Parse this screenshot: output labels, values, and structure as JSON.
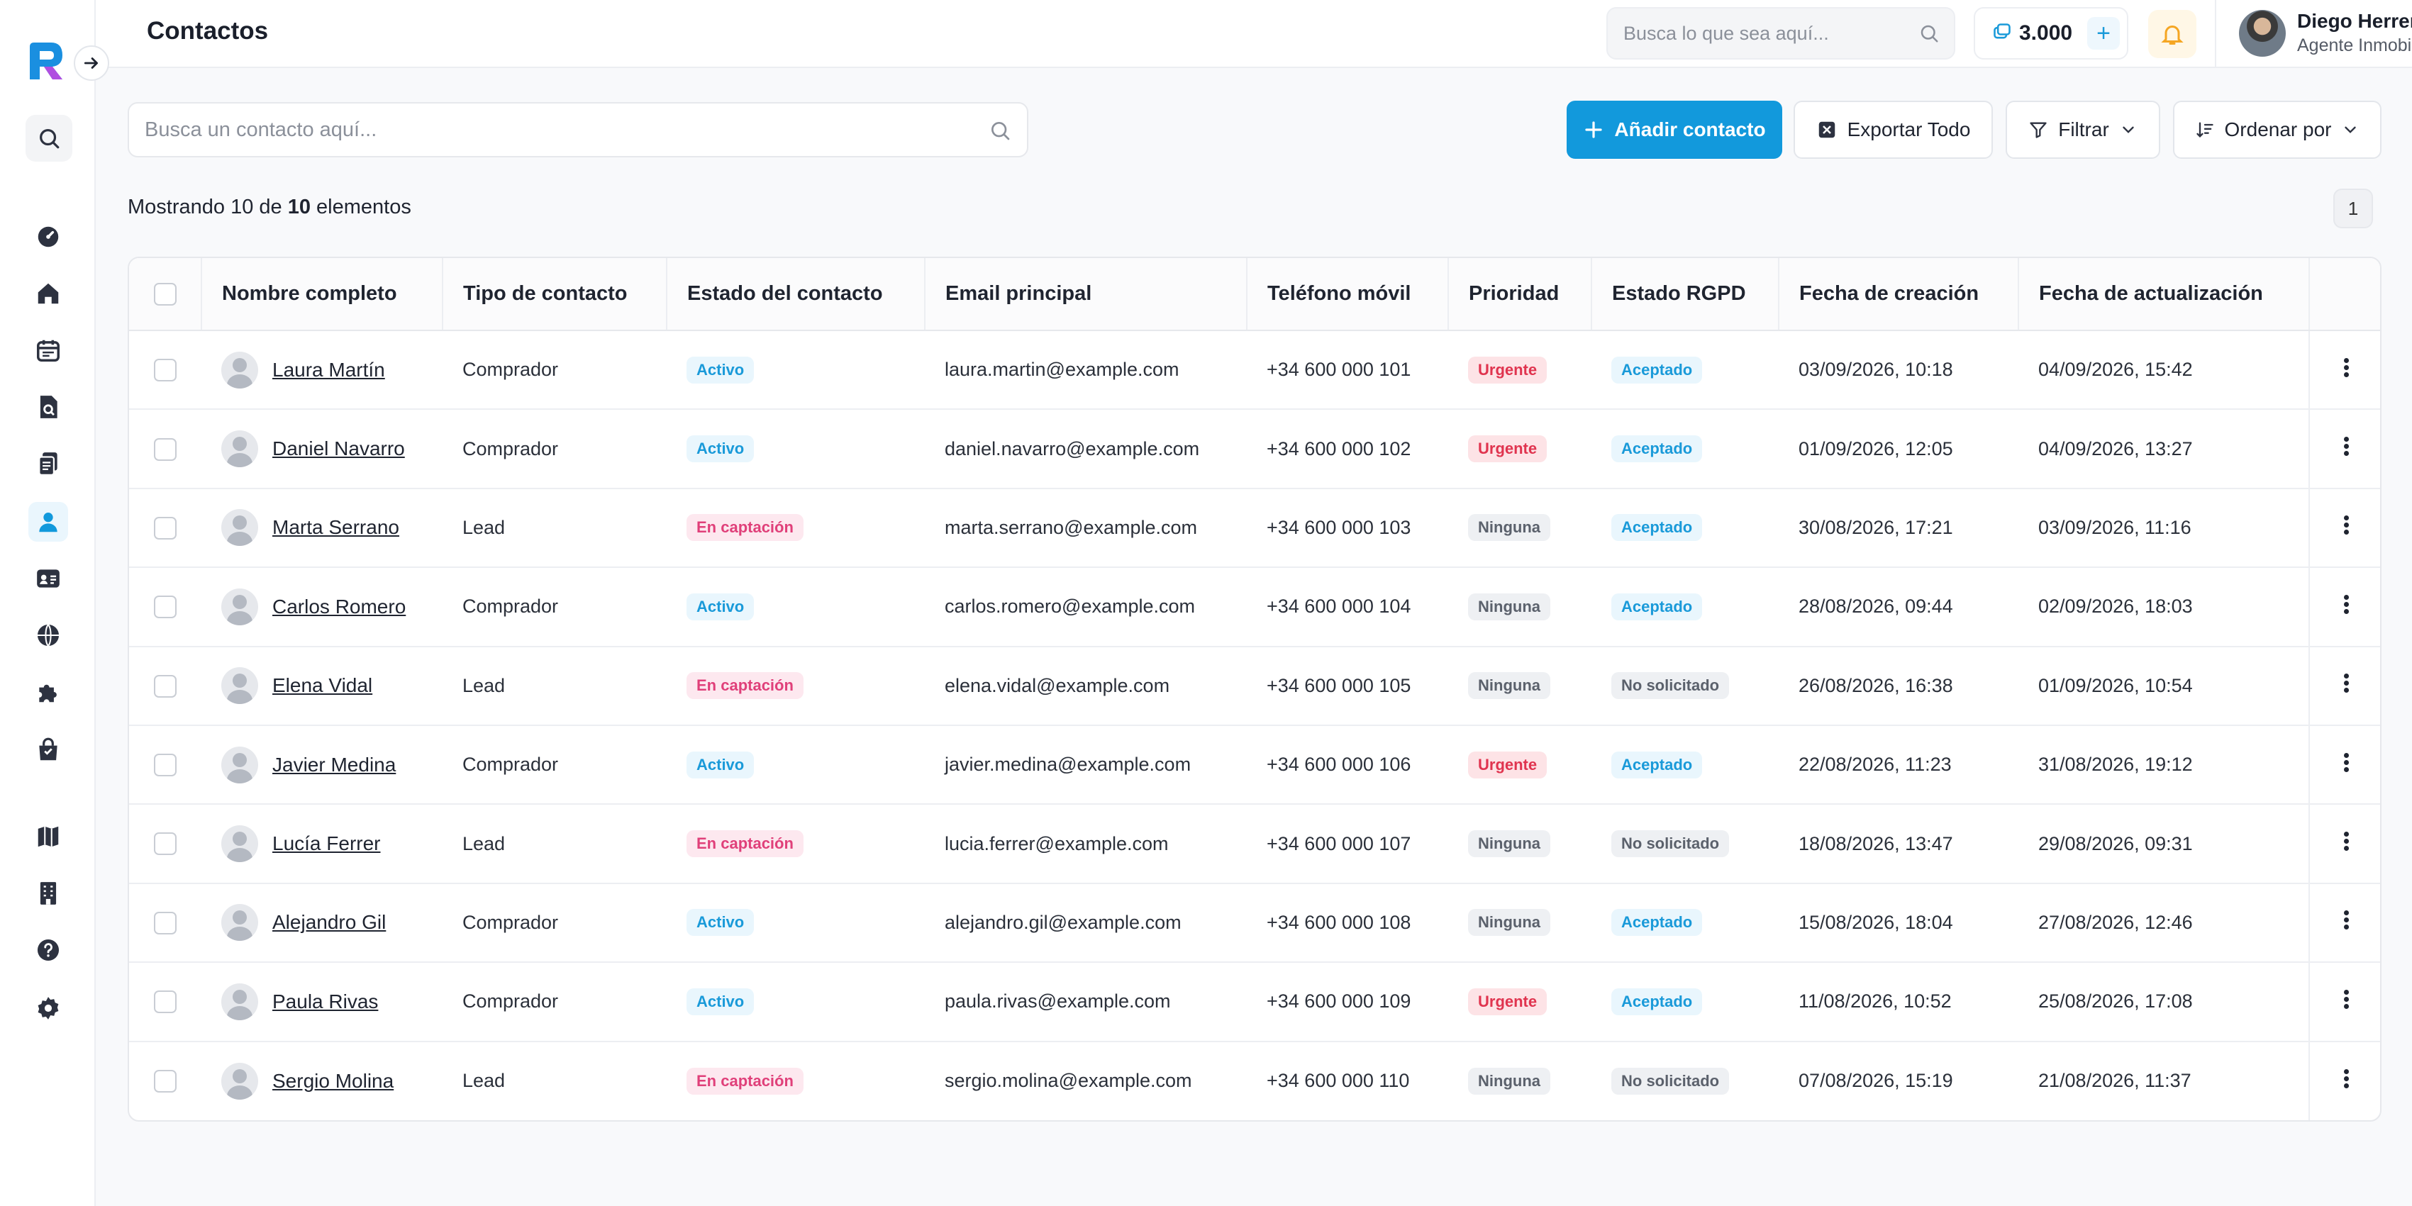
{
  "header": {
    "title": "Contactos",
    "search_placeholder": "Busca lo que sea aquí...",
    "credits": "3.000",
    "user": {
      "name": "Diego Herrera",
      "role": "Agente Inmobiliario"
    }
  },
  "toolbar": {
    "search_placeholder": "Busca un contacto aquí...",
    "add_label": "Añadir contacto",
    "export_label": "Exportar Todo",
    "filter_label": "Filtrar",
    "sort_label": "Ordenar por"
  },
  "summary": {
    "prefix": "Mostrando 10 de",
    "total": "10",
    "suffix": "elementos",
    "page": "1"
  },
  "table": {
    "columns": [
      "Nombre completo",
      "Tipo de contacto",
      "Estado del contacto",
      "Email principal",
      "Teléfono móvil",
      "Prioridad",
      "Estado RGPD",
      "Fecha de creación",
      "Fecha de actualización"
    ],
    "rows": [
      {
        "name": "Laura Martín",
        "type": "Comprador",
        "status": "Activo",
        "email": "laura.martin@example.com",
        "phone": "+34 600 000 101",
        "priority": "Urgente",
        "rgpd": "Aceptado",
        "created": "03/09/2026, 10:18",
        "updated": "04/09/2026, 15:42"
      },
      {
        "name": "Daniel Navarro",
        "type": "Comprador",
        "status": "Activo",
        "email": "daniel.navarro@example.com",
        "phone": "+34 600 000 102",
        "priority": "Urgente",
        "rgpd": "Aceptado",
        "created": "01/09/2026, 12:05",
        "updated": "04/09/2026, 13:27"
      },
      {
        "name": "Marta Serrano",
        "type": "Lead",
        "status": "En captación",
        "email": "marta.serrano@example.com",
        "phone": "+34 600 000 103",
        "priority": "Ninguna",
        "rgpd": "Aceptado",
        "created": "30/08/2026, 17:21",
        "updated": "03/09/2026, 11:16"
      },
      {
        "name": "Carlos Romero",
        "type": "Comprador",
        "status": "Activo",
        "email": "carlos.romero@example.com",
        "phone": "+34 600 000 104",
        "priority": "Ninguna",
        "rgpd": "Aceptado",
        "created": "28/08/2026, 09:44",
        "updated": "02/09/2026, 18:03"
      },
      {
        "name": "Elena Vidal",
        "type": "Lead",
        "status": "En captación",
        "email": "elena.vidal@example.com",
        "phone": "+34 600 000 105",
        "priority": "Ninguna",
        "rgpd": "No solicitado",
        "created": "26/08/2026, 16:38",
        "updated": "01/09/2026, 10:54"
      },
      {
        "name": "Javier Medina",
        "type": "Comprador",
        "status": "Activo",
        "email": "javier.medina@example.com",
        "phone": "+34 600 000 106",
        "priority": "Urgente",
        "rgpd": "Aceptado",
        "created": "22/08/2026, 11:23",
        "updated": "31/08/2026, 19:12"
      },
      {
        "name": "Lucía Ferrer",
        "type": "Lead",
        "status": "En captación",
        "email": "lucia.ferrer@example.com",
        "phone": "+34 600 000 107",
        "priority": "Ninguna",
        "rgpd": "No solicitado",
        "created": "18/08/2026, 13:47",
        "updated": "29/08/2026, 09:31"
      },
      {
        "name": "Alejandro Gil",
        "type": "Comprador",
        "status": "Activo",
        "email": "alejandro.gil@example.com",
        "phone": "+34 600 000 108",
        "priority": "Ninguna",
        "rgpd": "Aceptado",
        "created": "15/08/2026, 18:04",
        "updated": "27/08/2026, 12:46"
      },
      {
        "name": "Paula Rivas",
        "type": "Comprador",
        "status": "Activo",
        "email": "paula.rivas@example.com",
        "phone": "+34 600 000 109",
        "priority": "Urgente",
        "rgpd": "Aceptado",
        "created": "11/08/2026, 10:52",
        "updated": "25/08/2026, 17:08"
      },
      {
        "name": "Sergio Molina",
        "type": "Lead",
        "status": "En captación",
        "email": "sergio.molina@example.com",
        "phone": "+34 600 000 110",
        "priority": "Ninguna",
        "rgpd": "No solicitado",
        "created": "07/08/2026, 15:19",
        "updated": "21/08/2026, 11:37"
      }
    ]
  },
  "sidebar": {
    "active": "contacts-icon",
    "icons": [
      "dashboard-icon",
      "home-icon",
      "calendar-icon",
      "document-search-icon",
      "documents-icon",
      "contacts-icon",
      "contact-card-icon",
      "globe-icon",
      "puzzle-icon",
      "bag-icon",
      "map-icon",
      "building-icon",
      "help-icon",
      "settings-icon"
    ]
  },
  "colors": {
    "accent": "#1299dc",
    "danger": "#e0344f",
    "pink": "#e0407a"
  }
}
